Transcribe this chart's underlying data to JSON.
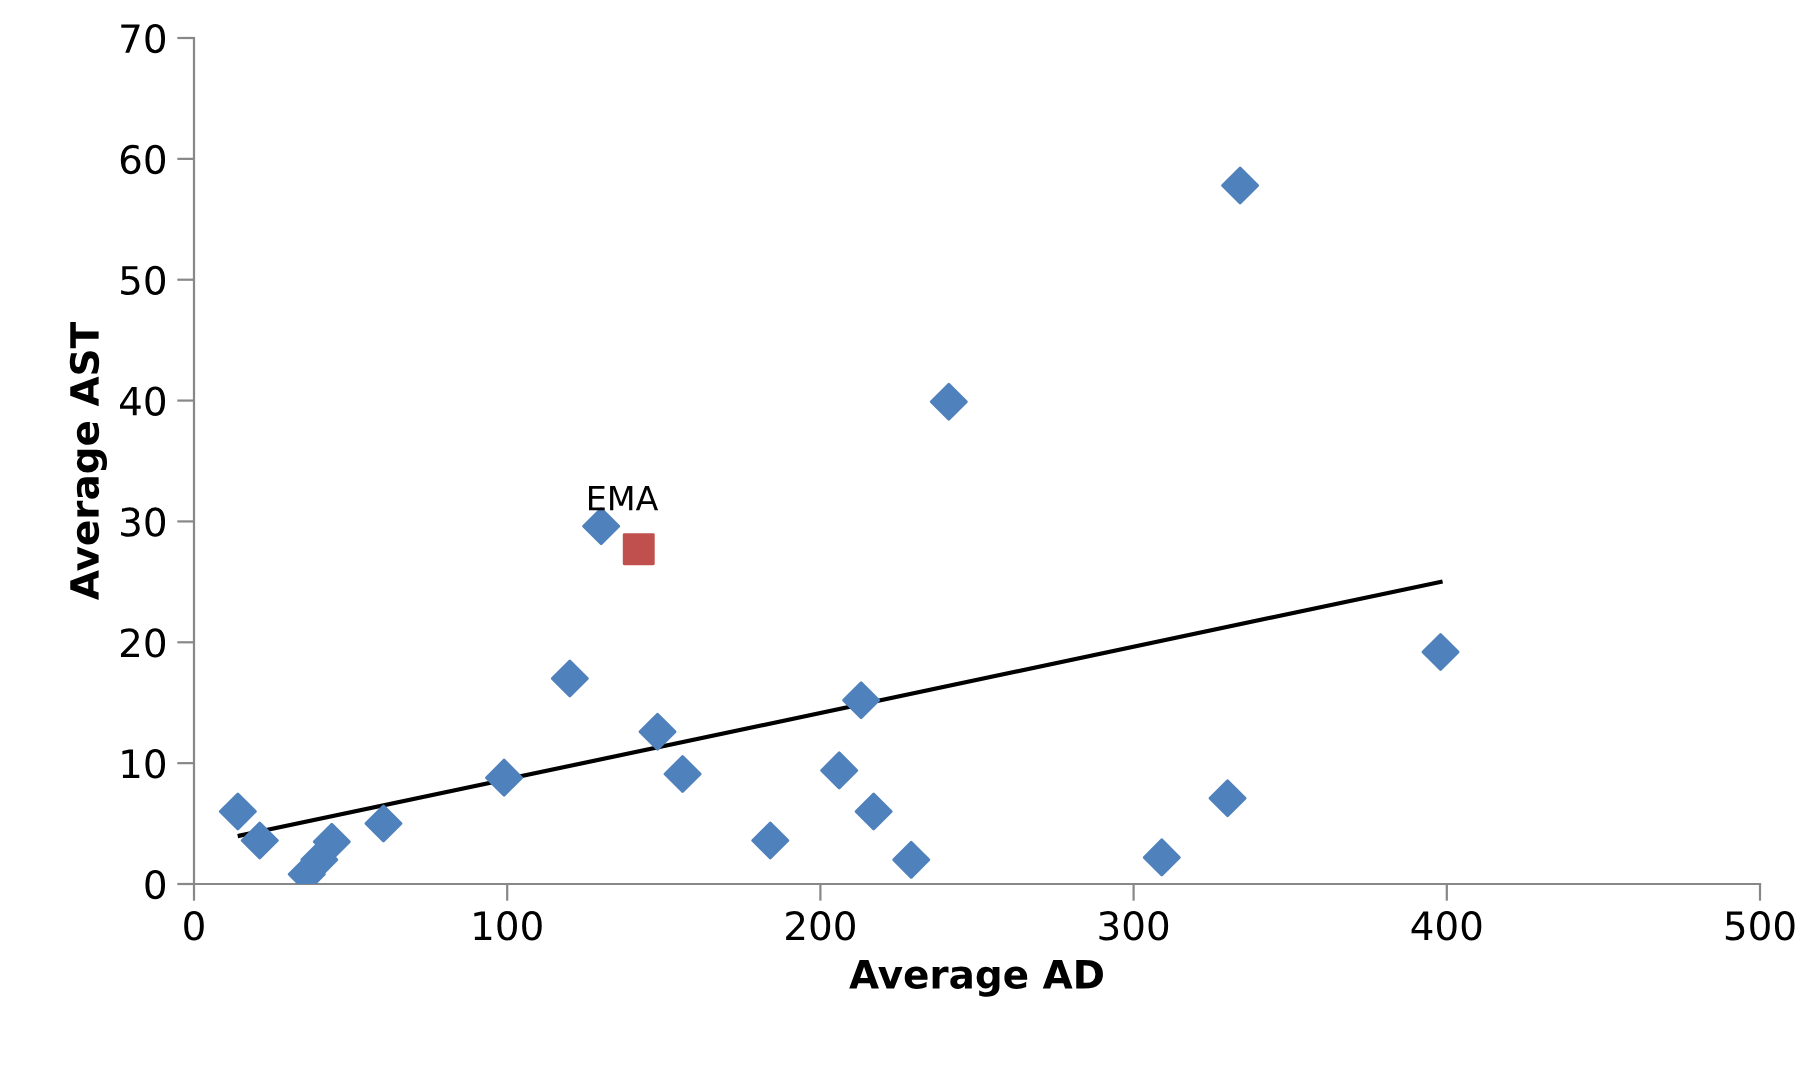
{
  "chart_data": {
    "type": "scatter",
    "xlabel": "Average AD",
    "ylabel": "Average AST",
    "xlim": [
      0,
      500
    ],
    "xticks": [
      0,
      100,
      200,
      300,
      400,
      500
    ],
    "ylim": [
      0,
      70
    ],
    "yticks": [
      0,
      10,
      20,
      30,
      40,
      50,
      60,
      70
    ],
    "grid": false,
    "legend": false,
    "series": [
      {
        "marker": "diamond",
        "color": "#4f81bd",
        "x": [
          14,
          21,
          36,
          40,
          44,
          60.5,
          99,
          120,
          130,
          148,
          156,
          184,
          206,
          213,
          217,
          229,
          241,
          309,
          330,
          334,
          398
        ],
        "values": [
          6.0,
          3.6,
          0.8,
          2.0,
          3.5,
          5.0,
          8.8,
          17.0,
          29.6,
          12.6,
          9.1,
          3.6,
          9.4,
          15.2,
          6.0,
          2.0,
          39.9,
          2.2,
          7.1,
          57.8,
          19.2
        ]
      },
      {
        "marker": "square",
        "color": "#c0504d",
        "x": [
          142
        ],
        "values": [
          27.7
        ]
      },
      {
        "type": "line",
        "marker": "none",
        "color": "#000000",
        "x": [
          14.6,
          398
        ],
        "values": [
          4.0,
          25.0
        ]
      }
    ],
    "annotations": [
      {
        "text": "EMA",
        "x": 142,
        "y": 27.7
      }
    ]
  }
}
